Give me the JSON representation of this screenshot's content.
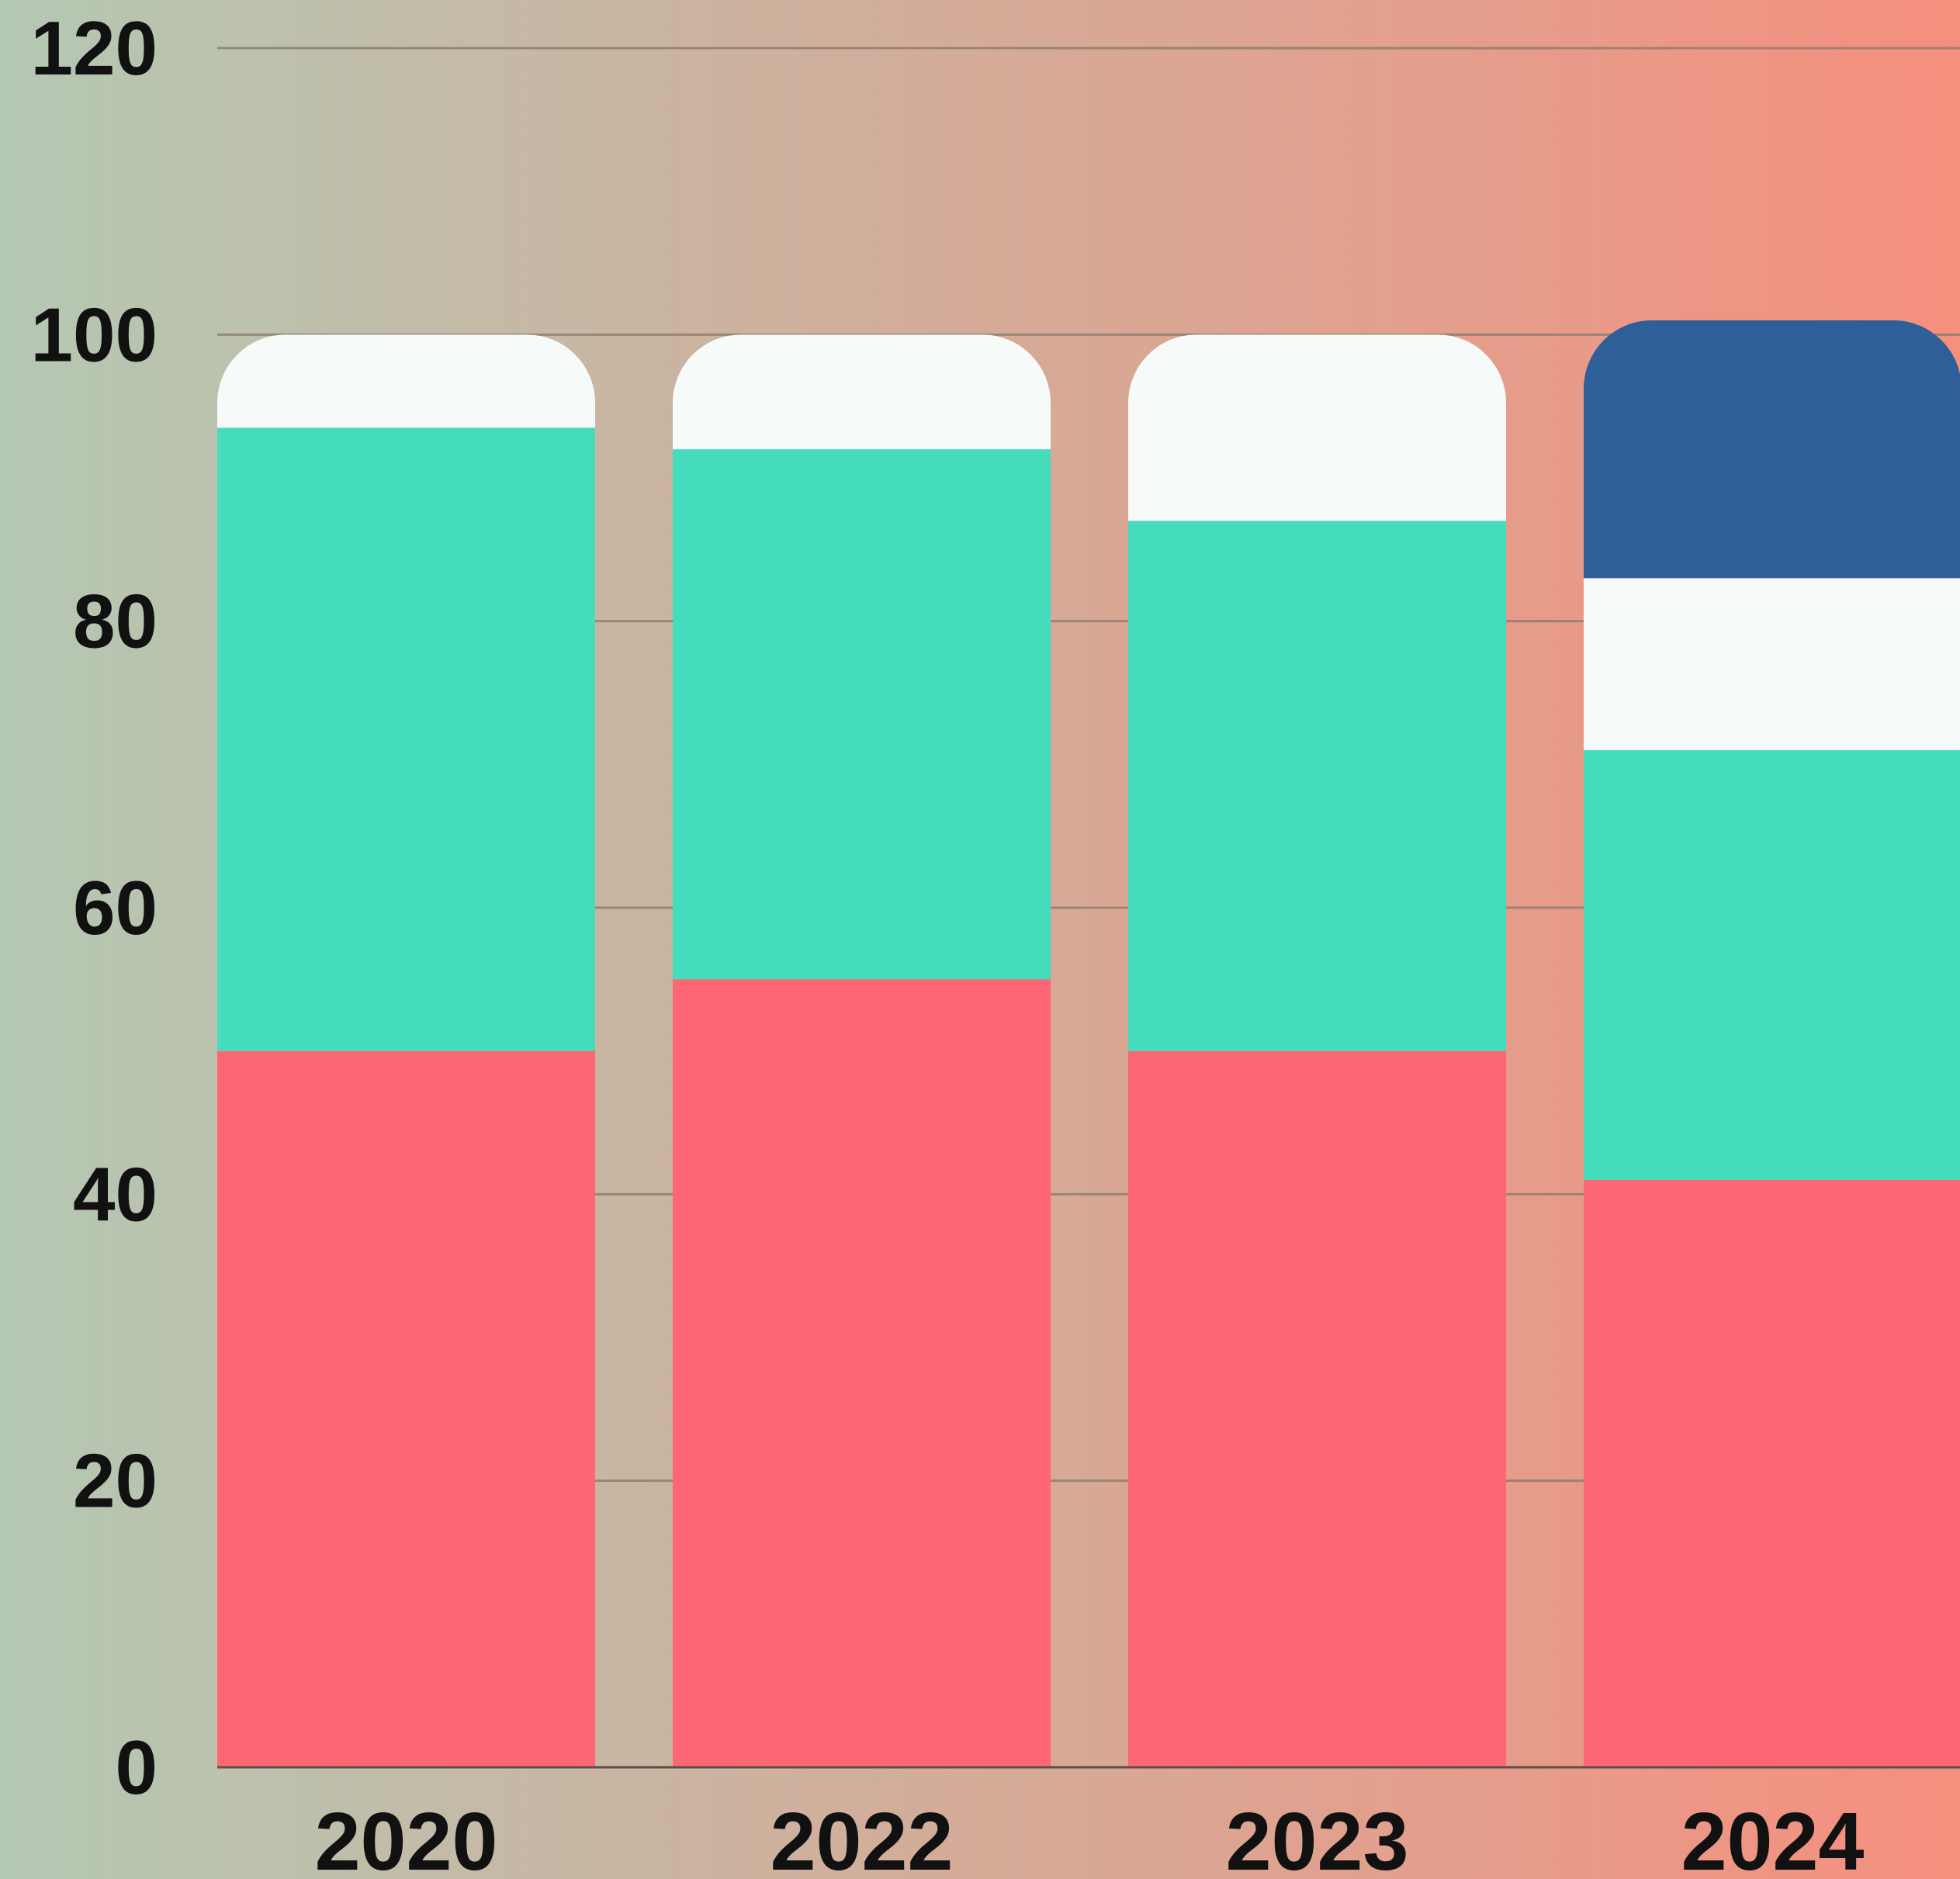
{
  "chart_data": {
    "type": "bar",
    "stacked": true,
    "title": "",
    "xlabel": "",
    "ylabel": "",
    "categories": [
      "2020",
      "2022",
      "2023",
      "2024"
    ],
    "series": [
      {
        "color": "#ff6674",
        "values": [
          50,
          55,
          50,
          41
        ]
      },
      {
        "color": "#44dcbc",
        "values": [
          43.5,
          37,
          37,
          30
        ]
      },
      {
        "color": "#f6fbfa",
        "values": [
          6.5,
          8,
          13,
          12
        ]
      },
      {
        "color": "#2f5f98",
        "values": [
          0,
          0,
          0,
          18
        ]
      }
    ],
    "ylim": [
      0,
      120
    ],
    "yticks": [
      0,
      20,
      40,
      60,
      80,
      100,
      120
    ],
    "grid": true,
    "legend": "none",
    "background_gradient": [
      "#b4c8b3",
      "#f58f7e"
    ]
  }
}
